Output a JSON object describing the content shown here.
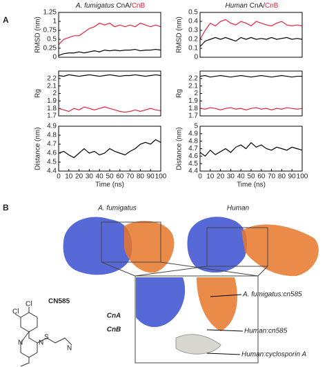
{
  "panel_a": {
    "label": "A",
    "column_titles": [
      {
        "parts": [
          "A. fumigatus",
          "CnA/",
          "CnB"
        ]
      },
      {
        "parts": [
          "Human",
          "CnA/",
          "CnB"
        ]
      }
    ]
  },
  "chart_data": [
    {
      "type": "line",
      "ylabel": "RMSD (nm)",
      "xlim": [
        0,
        100
      ],
      "ylim": [
        0,
        1.25
      ],
      "yticks": [
        0,
        0.25,
        0.5,
        0.75,
        1,
        1.25
      ],
      "x": [
        0,
        5,
        10,
        15,
        20,
        25,
        30,
        35,
        40,
        45,
        50,
        55,
        60,
        65,
        70,
        75,
        80,
        85,
        90,
        95,
        100
      ],
      "series": [
        {
          "name": "CnB",
          "color": "#e8213a",
          "values": [
            0.35,
            0.5,
            0.55,
            0.6,
            0.6,
            0.7,
            0.8,
            0.85,
            0.95,
            0.9,
            0.95,
            0.85,
            0.9,
            0.85,
            0.9,
            0.85,
            0.95,
            0.9,
            0.85,
            0.9,
            0.85
          ]
        },
        {
          "name": "CnA",
          "color": "#000000",
          "values": [
            0.05,
            0.1,
            0.12,
            0.12,
            0.15,
            0.12,
            0.15,
            0.18,
            0.15,
            0.2,
            0.18,
            0.2,
            0.18,
            0.2,
            0.2,
            0.22,
            0.18,
            0.2,
            0.2,
            0.22,
            0.2
          ]
        }
      ]
    },
    {
      "type": "line",
      "ylabel": "RMSD (nm)",
      "xlim": [
        0,
        100
      ],
      "ylim": [
        0,
        0.5
      ],
      "yticks": [
        0,
        0.1,
        0.2,
        0.3,
        0.4,
        0.5
      ],
      "x": [
        0,
        5,
        10,
        15,
        20,
        25,
        30,
        35,
        40,
        45,
        50,
        55,
        60,
        65,
        70,
        75,
        80,
        85,
        90,
        95,
        100
      ],
      "series": [
        {
          "name": "CnB",
          "color": "#e8213a",
          "values": [
            0.2,
            0.3,
            0.38,
            0.35,
            0.4,
            0.42,
            0.38,
            0.36,
            0.4,
            0.38,
            0.35,
            0.4,
            0.38,
            0.36,
            0.35,
            0.38,
            0.4,
            0.36,
            0.35,
            0.36,
            0.35
          ]
        },
        {
          "name": "CnA",
          "color": "#000000",
          "values": [
            0.12,
            0.18,
            0.2,
            0.22,
            0.2,
            0.22,
            0.2,
            0.18,
            0.22,
            0.2,
            0.22,
            0.2,
            0.21,
            0.2,
            0.22,
            0.2,
            0.21,
            0.22,
            0.2,
            0.21,
            0.2
          ]
        }
      ]
    },
    {
      "type": "line",
      "ylabel": "Rg",
      "xlim": [
        0,
        100
      ],
      "ylim": [
        1.7,
        2.3
      ],
      "yticks": [
        1.7,
        1.8,
        1.9,
        2,
        2.1,
        2.2
      ],
      "x": [
        0,
        5,
        10,
        15,
        20,
        25,
        30,
        35,
        40,
        45,
        50,
        55,
        60,
        65,
        70,
        75,
        80,
        85,
        90,
        95,
        100
      ],
      "series": [
        {
          "name": "CnA",
          "color": "#000000",
          "values": [
            2.24,
            2.23,
            2.25,
            2.24,
            2.23,
            2.24,
            2.25,
            2.24,
            2.23,
            2.24,
            2.25,
            2.24,
            2.23,
            2.24,
            2.24,
            2.25,
            2.24,
            2.23,
            2.24,
            2.25,
            2.24
          ]
        },
        {
          "name": "CnB",
          "color": "#e8213a",
          "values": [
            1.8,
            1.78,
            1.76,
            1.8,
            1.78,
            1.82,
            1.8,
            1.78,
            1.8,
            1.82,
            1.8,
            1.78,
            1.76,
            1.75,
            1.76,
            1.78,
            1.76,
            1.78,
            1.8,
            1.78,
            1.77
          ]
        }
      ]
    },
    {
      "type": "line",
      "ylabel": "Rg",
      "xlim": [
        0,
        100
      ],
      "ylim": [
        1.7,
        2.3
      ],
      "yticks": [
        1.7,
        1.8,
        1.9,
        2,
        2.1,
        2.2
      ],
      "x": [
        0,
        5,
        10,
        15,
        20,
        25,
        30,
        35,
        40,
        45,
        50,
        55,
        60,
        65,
        70,
        75,
        80,
        85,
        90,
        95,
        100
      ],
      "series": [
        {
          "name": "CnA",
          "color": "#000000",
          "values": [
            2.23,
            2.24,
            2.22,
            2.23,
            2.24,
            2.23,
            2.22,
            2.23,
            2.24,
            2.23,
            2.22,
            2.23,
            2.24,
            2.23,
            2.22,
            2.23,
            2.24,
            2.23,
            2.22,
            2.23,
            2.23
          ]
        },
        {
          "name": "CnB",
          "color": "#e8213a",
          "values": [
            1.8,
            1.79,
            1.81,
            1.8,
            1.78,
            1.8,
            1.81,
            1.79,
            1.8,
            1.78,
            1.8,
            1.81,
            1.79,
            1.8,
            1.78,
            1.8,
            1.79,
            1.81,
            1.8,
            1.79,
            1.8
          ]
        }
      ]
    },
    {
      "type": "line",
      "ylabel": "Distance (nm)",
      "xlabel": "Time (ns)",
      "xlim": [
        0,
        100
      ],
      "ylim": [
        4.4,
        4.9
      ],
      "xticks": [
        0,
        10,
        20,
        30,
        40,
        50,
        60,
        70,
        80,
        90,
        100
      ],
      "yticks": [
        4.4,
        4.5,
        4.6,
        4.7,
        4.8,
        4.9
      ],
      "x": [
        0,
        5,
        10,
        15,
        20,
        25,
        30,
        35,
        40,
        45,
        50,
        55,
        60,
        65,
        70,
        75,
        80,
        85,
        90,
        95,
        100
      ],
      "series": [
        {
          "name": "Distance",
          "color": "#000000",
          "values": [
            4.6,
            4.62,
            4.58,
            4.55,
            4.6,
            4.65,
            4.6,
            4.62,
            4.58,
            4.6,
            4.65,
            4.62,
            4.6,
            4.58,
            4.62,
            4.65,
            4.7,
            4.72,
            4.7,
            4.75,
            4.72
          ]
        }
      ]
    },
    {
      "type": "line",
      "ylabel": "Distance (nm)",
      "xlabel": "Time (ns)",
      "xlim": [
        0,
        100
      ],
      "ylim": [
        4.4,
        5
      ],
      "xticks": [
        0,
        10,
        20,
        30,
        40,
        50,
        60,
        70,
        80,
        90,
        100
      ],
      "yticks": [
        4.4,
        4.5,
        4.6,
        4.7,
        4.8,
        4.9,
        5
      ],
      "x": [
        0,
        5,
        10,
        15,
        20,
        25,
        30,
        35,
        40,
        45,
        50,
        55,
        60,
        65,
        70,
        75,
        80,
        85,
        90,
        95,
        100
      ],
      "series": [
        {
          "name": "Distance",
          "color": "#000000",
          "values": [
            4.65,
            4.6,
            4.68,
            4.62,
            4.66,
            4.7,
            4.65,
            4.72,
            4.75,
            4.7,
            4.78,
            4.72,
            4.75,
            4.7,
            4.68,
            4.72,
            4.7,
            4.68,
            4.72,
            4.7,
            4.68
          ]
        }
      ]
    }
  ],
  "panel_b": {
    "label": "B",
    "titles": [
      "A. fumigatus",
      "Human"
    ],
    "chain_labels": [
      "CnA",
      "CnB"
    ],
    "annotations": [
      "A. fumigatus:cn585",
      "Human:cn585",
      "Human:cyclosporin A"
    ],
    "compound": {
      "name": "CN585",
      "atoms": [
        "Cl",
        "Cl",
        "S",
        "N",
        "N",
        "N"
      ]
    }
  }
}
